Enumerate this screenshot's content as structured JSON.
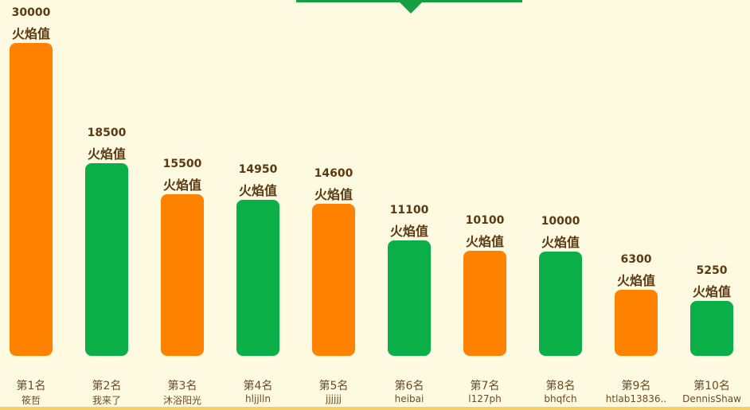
{
  "colors": {
    "orange": "#ff8200",
    "green": "#0aaf47",
    "background": "#fefae2"
  },
  "chart_data": {
    "type": "bar",
    "value_unit": "火焰值",
    "categories": [
      "第1名",
      "第2名",
      "第3名",
      "第4名",
      "第5名",
      "第6名",
      "第7名",
      "第8名",
      "第9名",
      "第10名"
    ],
    "usernames": [
      "筱哲",
      "我来了",
      "沐浴阳光",
      "hljjlln",
      "jjjjjj",
      "heibai",
      "l127ph",
      "bhqfch",
      "htlab13836..",
      "DennisShaw"
    ],
    "values": [
      30000,
      18500,
      15500,
      14950,
      14600,
      11100,
      10100,
      10000,
      6300,
      5250
    ],
    "bar_colors": [
      "orange",
      "green",
      "orange",
      "green",
      "orange",
      "green",
      "orange",
      "green",
      "orange",
      "green"
    ]
  }
}
